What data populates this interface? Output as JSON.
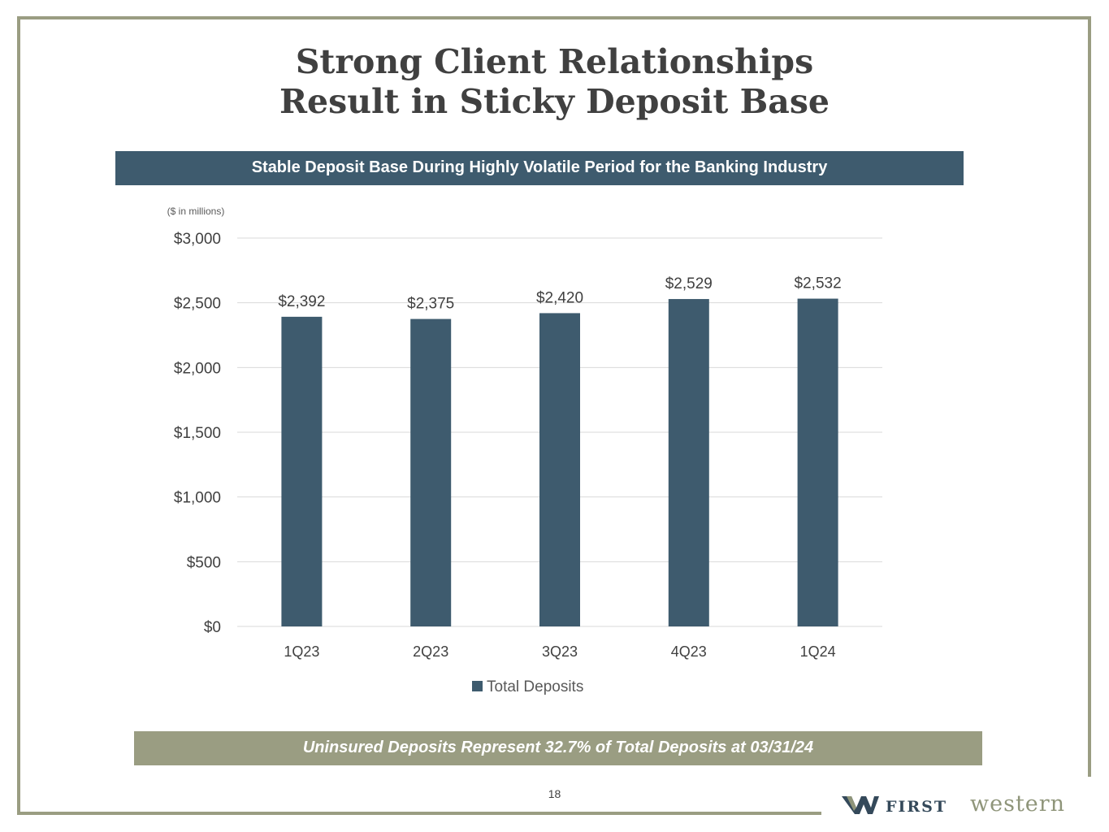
{
  "title": {
    "line1": "Strong Client Relationships",
    "line2": "Result in Sticky Deposit Base"
  },
  "banner": "Stable Deposit Base During Highly Volatile Period for the Banking Industry",
  "footer_banner": "Uninsured Deposits Represent 32.7% of Total Deposits at 03/31/24",
  "page_number": "18",
  "logo": {
    "first": "FIRST",
    "western": "western"
  },
  "colors": {
    "bar": "#3e5b6e",
    "banner": "#3e5b6e",
    "footer_banner": "#9a9d82",
    "frame": "#9a9d82",
    "grid": "#d9d9d9",
    "text": "#404040"
  },
  "chart_data": {
    "type": "bar",
    "title": "",
    "units_note": "($ in millions)",
    "categories": [
      "1Q23",
      "2Q23",
      "3Q23",
      "4Q23",
      "1Q24"
    ],
    "series": [
      {
        "name": "Total Deposits",
        "values": [
          2392,
          2375,
          2420,
          2529,
          2532
        ],
        "labels": [
          "$2,392",
          "$2,375",
          "$2,420",
          "$2,529",
          "$2,532"
        ]
      }
    ],
    "ylim": [
      0,
      3000
    ],
    "yticks": [
      0,
      500,
      1000,
      1500,
      2000,
      2500,
      3000
    ],
    "ytick_labels": [
      "$0",
      "$500",
      "$1,000",
      "$1,500",
      "$2,000",
      "$2,500",
      "$3,000"
    ],
    "xlabel": "",
    "ylabel": "",
    "grid": true,
    "legend": "bottom"
  }
}
